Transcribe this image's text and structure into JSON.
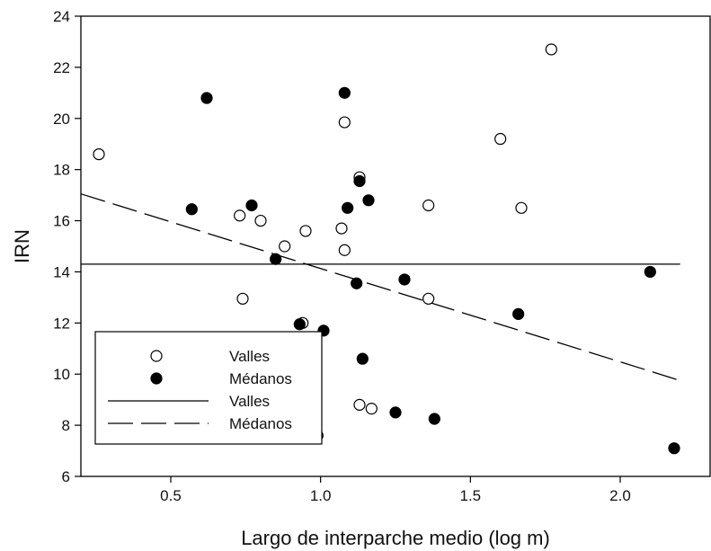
{
  "chart_data": {
    "type": "scatter",
    "xlabel": "Largo de interparche medio (log m)",
    "ylabel": "IRN",
    "xlim": [
      0.2,
      2.3
    ],
    "ylim": [
      6,
      24
    ],
    "xticks": [
      0.5,
      1.0,
      1.5,
      2.0
    ],
    "xtick_labels": [
      "0.5",
      "1.0",
      "1.5",
      "2.0"
    ],
    "yticks": [
      6,
      8,
      10,
      12,
      14,
      16,
      18,
      20,
      22,
      24
    ],
    "ytick_labels": [
      "6",
      "8",
      "10",
      "12",
      "14",
      "16",
      "18",
      "20",
      "22",
      "24"
    ],
    "grid": false,
    "legend_position": "bottom-left",
    "series": [
      {
        "name": "Valles",
        "marker": "open-circle",
        "color": "#000000",
        "points": [
          [
            0.26,
            18.6
          ],
          [
            0.73,
            16.2
          ],
          [
            0.74,
            12.95
          ],
          [
            0.8,
            16.0
          ],
          [
            0.88,
            15.0
          ],
          [
            0.94,
            12.0
          ],
          [
            0.95,
            15.6
          ],
          [
            1.07,
            15.7
          ],
          [
            1.08,
            14.85
          ],
          [
            1.08,
            19.85
          ],
          [
            1.13,
            17.7
          ],
          [
            1.13,
            8.8
          ],
          [
            1.17,
            8.65
          ],
          [
            1.36,
            16.6
          ],
          [
            1.36,
            12.95
          ],
          [
            1.6,
            19.2
          ],
          [
            1.67,
            16.5
          ],
          [
            1.77,
            22.7
          ]
        ]
      },
      {
        "name": "Médanos",
        "marker": "filled-circle",
        "color": "#000000",
        "points": [
          [
            0.57,
            16.45
          ],
          [
            0.62,
            20.8
          ],
          [
            0.77,
            16.6
          ],
          [
            0.85,
            14.5
          ],
          [
            0.93,
            11.95
          ],
          [
            0.99,
            7.6
          ],
          [
            1.01,
            11.7
          ],
          [
            1.08,
            21.0
          ],
          [
            1.09,
            16.5
          ],
          [
            1.12,
            13.55
          ],
          [
            1.13,
            17.55
          ],
          [
            1.14,
            10.6
          ],
          [
            1.16,
            16.8
          ],
          [
            1.25,
            8.5
          ],
          [
            1.28,
            13.7
          ],
          [
            1.38,
            8.25
          ],
          [
            1.66,
            12.35
          ],
          [
            2.1,
            14.0
          ],
          [
            2.18,
            7.1
          ]
        ]
      }
    ],
    "fit_lines": [
      {
        "name": "Valles",
        "style": "solid",
        "color": "#000000",
        "x": [
          0.2,
          2.2
        ],
        "y": [
          14.3,
          14.3
        ]
      },
      {
        "name": "Médanos",
        "style": "dashed",
        "color": "#000000",
        "x": [
          0.2,
          2.2
        ],
        "y": [
          17.05,
          9.75
        ]
      }
    ],
    "legend": [
      {
        "label": "Valles",
        "symbol": "open-circle"
      },
      {
        "label": "Médanos",
        "symbol": "filled-circle"
      },
      {
        "label": "Valles",
        "symbol": "solid-line"
      },
      {
        "label": "Médanos",
        "symbol": "dashed-line"
      }
    ]
  }
}
